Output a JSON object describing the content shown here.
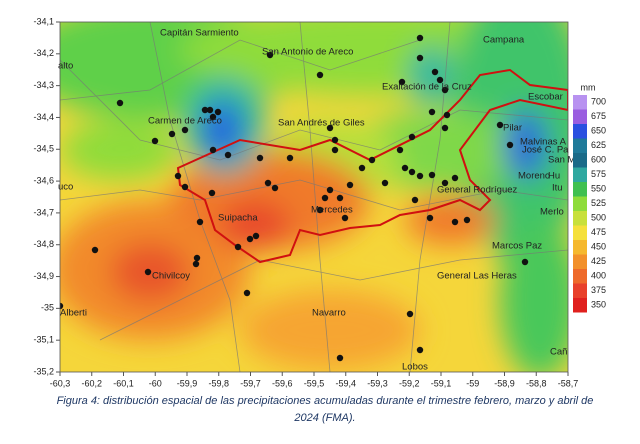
{
  "map": {
    "xticks": [
      "-60,3",
      "-60,2",
      "-60,1",
      "-60",
      "-59,9",
      "-59,8",
      "-59,7",
      "-59,6",
      "-59,5",
      "-59,4",
      "-59,3",
      "-59,2",
      "-59,1",
      "-59",
      "-58,9",
      "-58,8",
      "-58,7"
    ],
    "yticks": [
      "-34,1",
      "-34,2",
      "-34,3",
      "-34,4",
      "-34,5",
      "-34,6",
      "-34,7",
      "-34,8",
      "-34,9",
      "-35",
      "-35,1",
      "-35,2"
    ],
    "places": [
      "Capitán Sarmiento",
      "San Antonio de Areco",
      "Campana",
      "Exaltación de la Cruz",
      "Escobar",
      "Carmen de Areco",
      "San Andrés de Giles",
      "Pilar",
      "Malvinas A",
      "José C. Pa",
      "San M",
      "Moreno",
      "Hu",
      "Itu",
      "Merlo",
      "General Rodríguez",
      "Mercedes",
      "Suipacha",
      "Marcos Paz",
      "Chivilcoy",
      "General Las Heras",
      "Navarro",
      "Alberti",
      "Lobos",
      "Cañ",
      "alto",
      "uco"
    ],
    "legend": {
      "unit": "mm",
      "labels": [
        "700",
        "675",
        "650",
        "625",
        "600",
        "575",
        "550",
        "525",
        "500",
        "475",
        "450",
        "425",
        "400",
        "375",
        "350"
      ]
    }
  },
  "caption": [
    "Figura 4: distribución espacial de las precipitaciones acumuladas durante el trimestre febrero, marzo y abril de",
    "2024 (FMA)."
  ]
}
